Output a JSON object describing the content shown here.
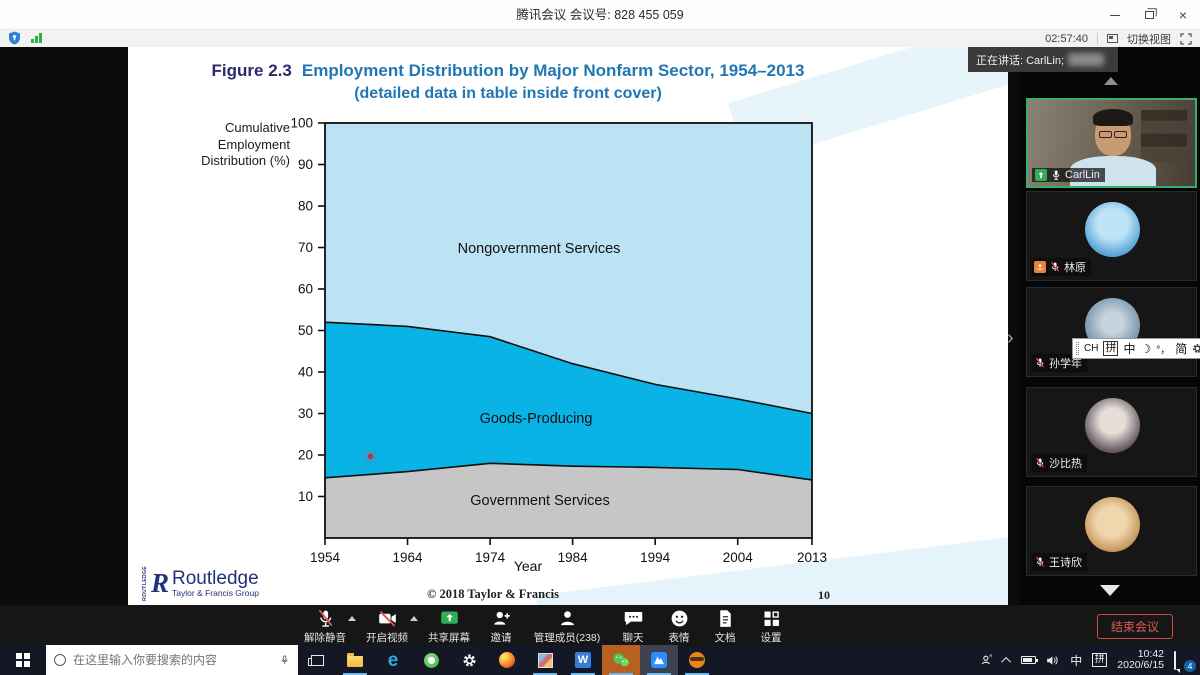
{
  "window": {
    "title": "腾讯会议 会议号: 828 455 059"
  },
  "statusbar": {
    "timer": "02:57:40",
    "switch_view_label": "切换视图"
  },
  "toast": {
    "speaking_label": "正在讲话: CarlLin;"
  },
  "slide": {
    "figure_label": "Figure 2.3",
    "title": "Employment Distribution by Major Nonfarm Sector, 1954–2013",
    "subtitle": "(detailed data in table inside front cover)",
    "copyright": "© 2018 Taylor & Francis",
    "page_number": "10",
    "logo": {
      "vertical": "ROUTLEDGE",
      "mark": "R",
      "name": "Routledge",
      "subname": "Taylor & Francis Group"
    }
  },
  "chart_data": {
    "type": "area",
    "stacked": true,
    "title": "Employment Distribution by Major Nonfarm Sector, 1954–2013",
    "x": [
      1954,
      1964,
      1974,
      1984,
      1994,
      2004,
      2013
    ],
    "xtick_labels": [
      "1954",
      "1964",
      "1974",
      "1984",
      "1994",
      "2004",
      "2013"
    ],
    "xlabel": "Year",
    "ylabel": "Cumulative Employment Distribution (%)",
    "ylabel_lines": [
      "Cumulative",
      "Employment",
      "Distribution (%)"
    ],
    "ylim": [
      0,
      100
    ],
    "yticks": [
      10,
      20,
      30,
      40,
      50,
      60,
      70,
      80,
      90,
      100
    ],
    "grid": false,
    "series": [
      {
        "name": "Government Services",
        "cumulative_top": [
          14.5,
          16,
          18,
          17.3,
          17,
          16.5,
          14
        ],
        "color": "#c6c6c6"
      },
      {
        "name": "Goods-Producing",
        "cumulative_top": [
          52,
          51,
          48.5,
          42,
          37,
          33.5,
          30
        ],
        "color": "#09b3e6"
      },
      {
        "name": "Nongovernment Services",
        "cumulative_top": [
          100,
          100,
          100,
          100,
          100,
          100,
          100
        ],
        "color": "#bce3f4"
      }
    ],
    "annotations": [
      "laser-pointer-dot at (1958, 20)"
    ]
  },
  "sidebar": {
    "participants": [
      {
        "name": "CarlLin",
        "mic": "on",
        "sharing": true,
        "speaking": true,
        "video": true
      },
      {
        "name": "林原",
        "mic": "muted",
        "member_badge": true
      },
      {
        "name": "孙学年",
        "mic": "muted"
      },
      {
        "name": "沙比热",
        "mic": "muted"
      },
      {
        "name": "王诗欣",
        "mic": "muted"
      }
    ]
  },
  "ime_bar": {
    "mode": "CH",
    "pinyin": "拼",
    "zh": "中",
    "moon": "☽",
    "punct": "°，",
    "simplified": "简",
    "more": "⋮"
  },
  "meeting_controls": {
    "items": [
      {
        "label": "解除静音"
      },
      {
        "label": "开启视频"
      },
      {
        "label": "共享屏幕"
      },
      {
        "label": "邀请"
      },
      {
        "label": "管理成员(238)"
      },
      {
        "label": "聊天"
      },
      {
        "label": "表情"
      },
      {
        "label": "文档"
      },
      {
        "label": "设置"
      }
    ],
    "end_label": "结束会议"
  },
  "taskbar": {
    "search_placeholder": "在这里输入你要搜索的内容",
    "edge_letter": "e",
    "wps_letter": "W",
    "tray_zh": "中",
    "tray_pin": "拼",
    "clock_time": "10:42",
    "clock_date": "2020/6/15",
    "notification_count": "4"
  }
}
